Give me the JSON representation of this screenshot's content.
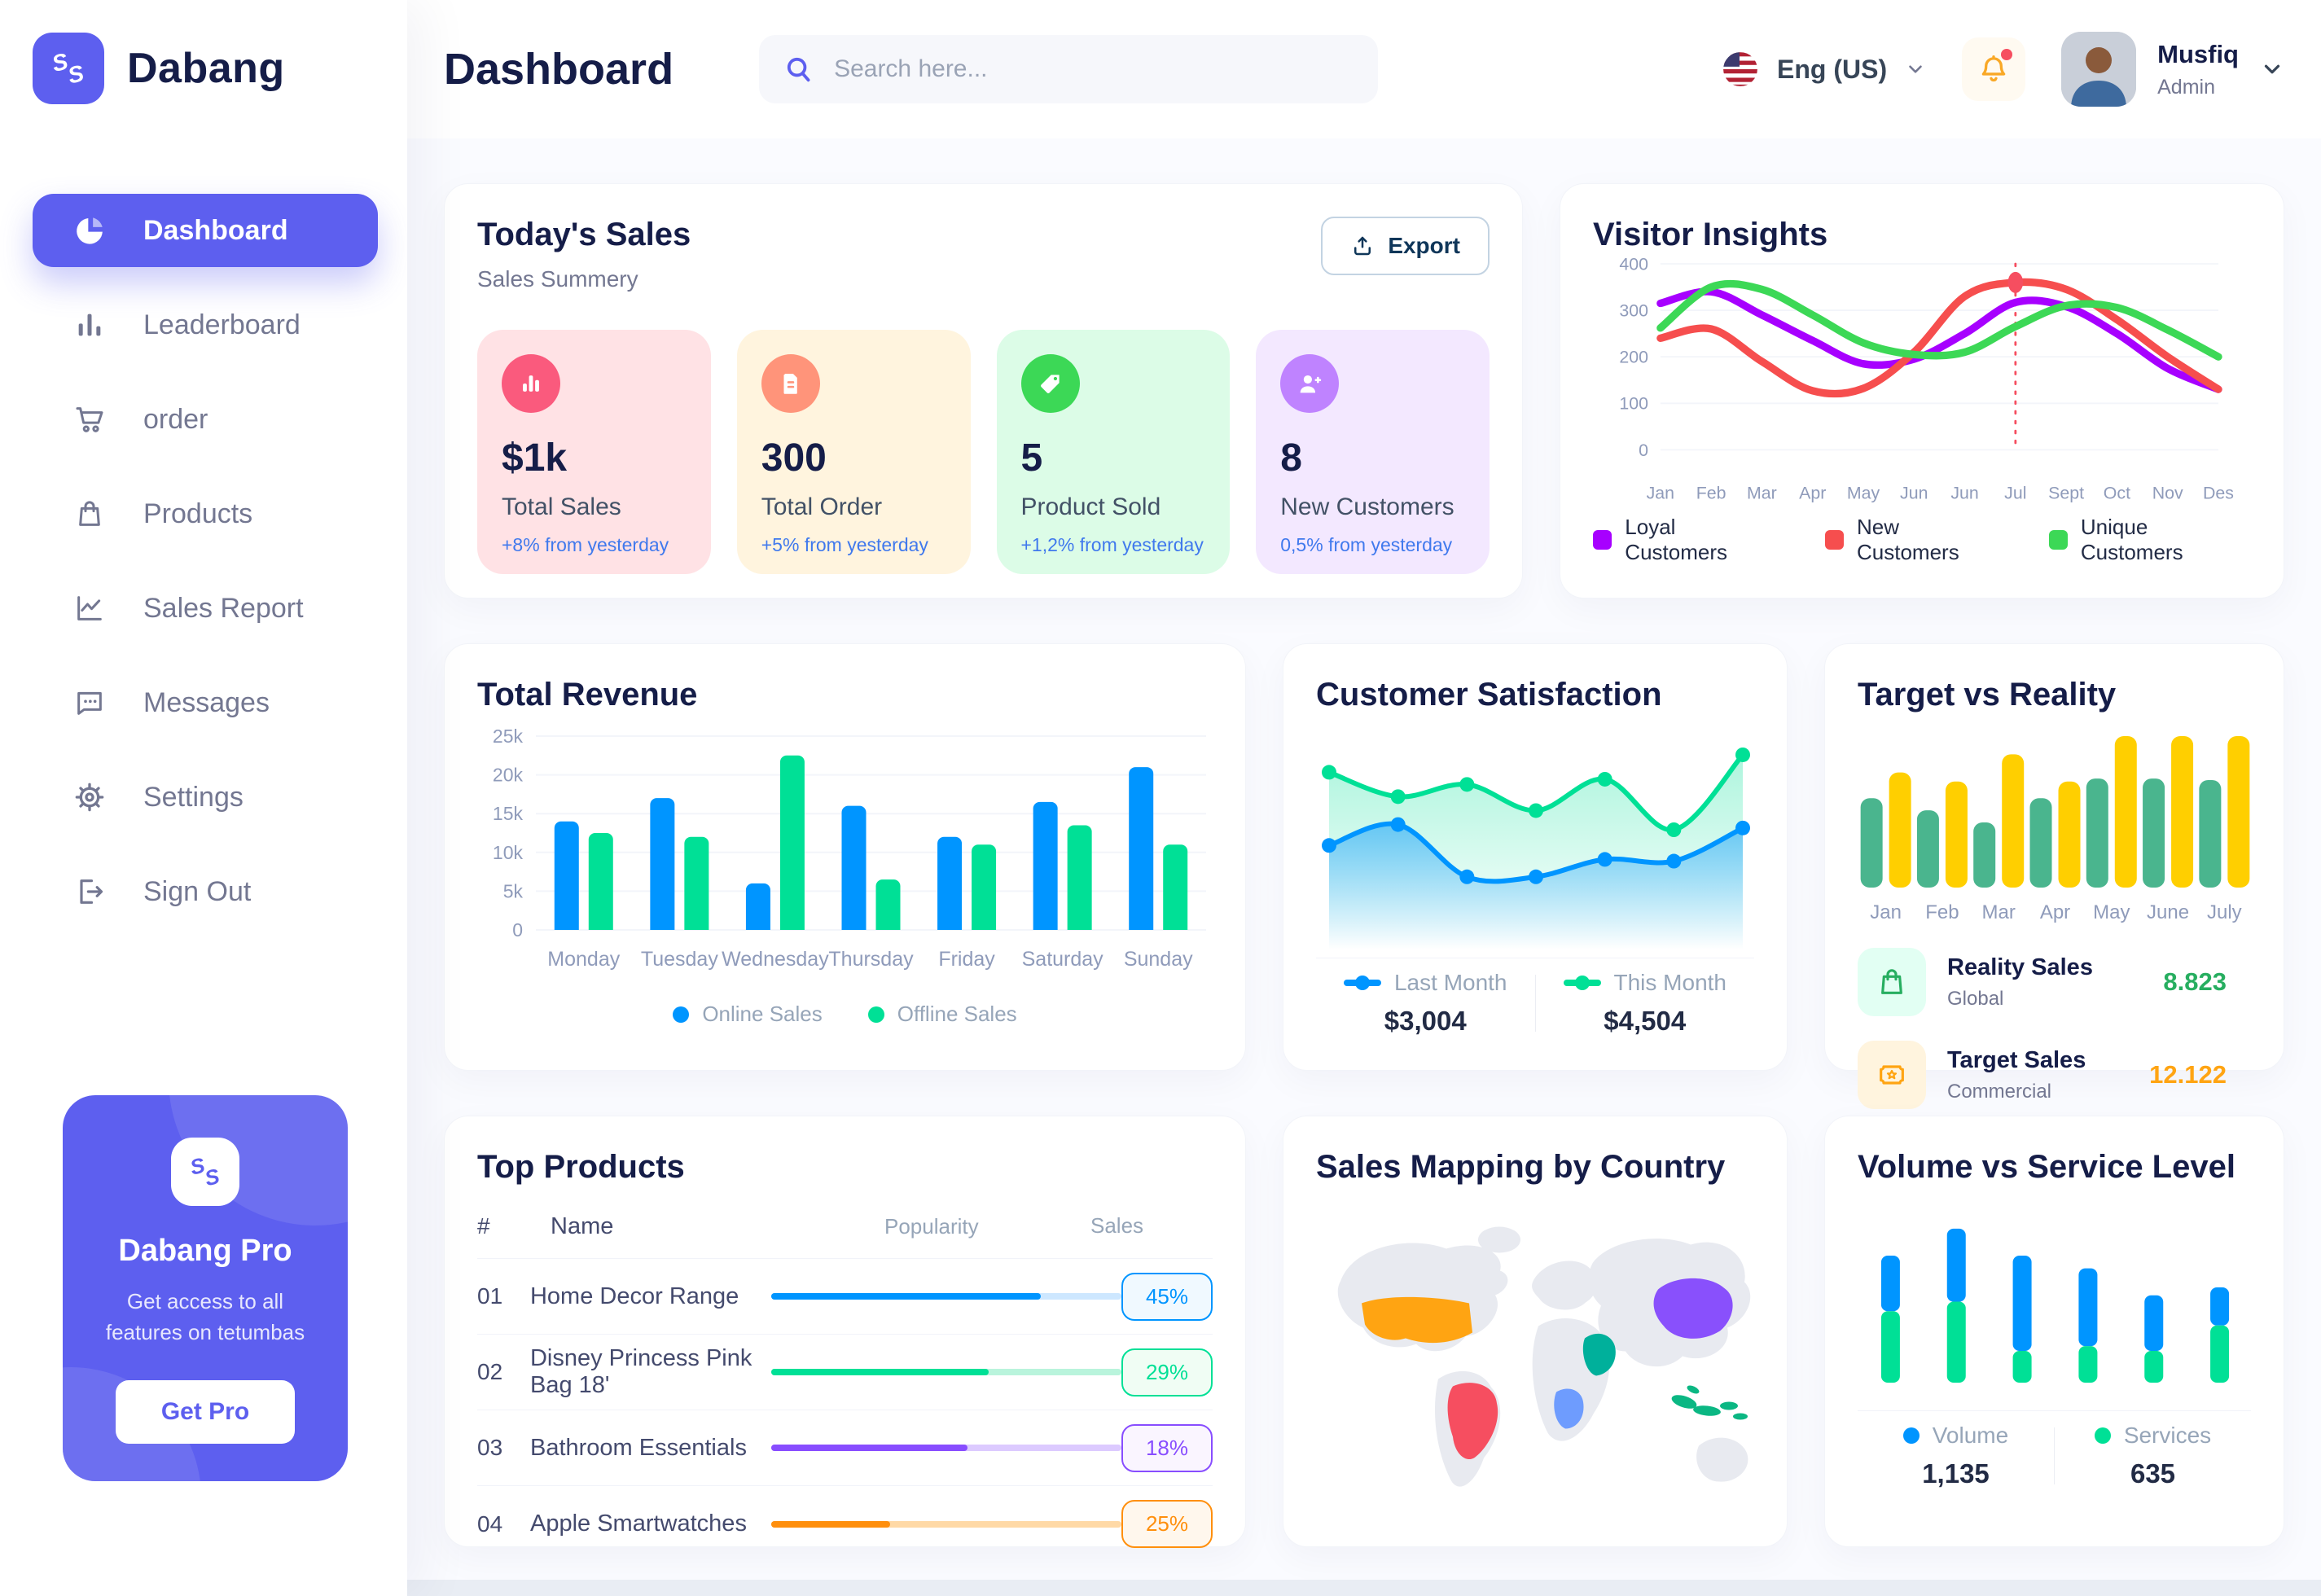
{
  "app": {
    "name": "Dabang",
    "accent_color": "#5D5FEF"
  },
  "header": {
    "title": "Dashboard",
    "search_placeholder": "Search here...",
    "language": "Eng (US)",
    "user": {
      "name": "Musfiq",
      "role": "Admin"
    }
  },
  "sidebar": {
    "items": [
      {
        "label": "Dashboard",
        "icon": "pie-chart-icon",
        "active": true
      },
      {
        "label": "Leaderboard",
        "icon": "bar-chart-icon"
      },
      {
        "label": "order",
        "icon": "cart-icon"
      },
      {
        "label": "Products",
        "icon": "bag-icon"
      },
      {
        "label": "Sales Report",
        "icon": "line-chart-icon"
      },
      {
        "label": "Messages",
        "icon": "message-icon"
      },
      {
        "label": "Settings",
        "icon": "gear-icon"
      },
      {
        "label": "Sign Out",
        "icon": "sign-out-icon"
      }
    ],
    "pro_card": {
      "title": "Dabang Pro",
      "subtitle": "Get access to all features on tetumbas",
      "button_label": "Get Pro"
    }
  },
  "todays_sales": {
    "title": "Today's Sales",
    "subtitle": "Sales Summery",
    "export_label": "Export",
    "delta_color": "#4079ED",
    "stats": [
      {
        "value": "$1k",
        "label": "Total Sales",
        "delta": "+8% from yesterday",
        "bg": "#FFE2E5",
        "icon_bg": "#FA5A7D",
        "icon": "bar-stats-icon"
      },
      {
        "value": "300",
        "label": "Total Order",
        "delta": "+5% from yesterday",
        "bg": "#FFF4DE",
        "icon_bg": "#FF947A",
        "icon": "file-icon"
      },
      {
        "value": "5",
        "label": "Product Sold",
        "delta": "+1,2% from yesterday",
        "bg": "#DCFCE7",
        "icon_bg": "#3CD856",
        "icon": "tag-icon"
      },
      {
        "value": "8",
        "label": "New Customers",
        "delta": "0,5% from yesterday",
        "bg": "#F3E8FF",
        "icon_bg": "#BF83FF",
        "icon": "user-plus-icon"
      }
    ]
  },
  "chart_data": [
    {
      "id": "visitor_insights",
      "type": "line",
      "title": "Visitor Insights",
      "x": [
        "Jan",
        "Feb",
        "Mar",
        "Apr",
        "May",
        "Jun",
        "Jun",
        "Jul",
        "Sept",
        "Oct",
        "Nov",
        "Des"
      ],
      "ylim": [
        0,
        400
      ],
      "yticks": [
        0,
        100,
        200,
        300,
        400
      ],
      "grid": true,
      "legend_position": "bottom",
      "series": [
        {
          "name": "Loyal Customers",
          "color": "#A700FF",
          "values": [
            315,
            340,
            290,
            235,
            185,
            195,
            250,
            317,
            308,
            250,
            175,
            130
          ]
        },
        {
          "name": "New Customers",
          "color": "#F64E4E",
          "values": [
            240,
            260,
            190,
            127,
            132,
            210,
            330,
            360,
            345,
            280,
            200,
            130
          ]
        },
        {
          "name": "Unique Customers",
          "color": "#3CD856",
          "values": [
            262,
            350,
            345,
            290,
            230,
            205,
            210,
            265,
            310,
            306,
            258,
            200
          ]
        }
      ],
      "marker": {
        "series": 1,
        "index": 7,
        "color": "#F64E60"
      }
    },
    {
      "id": "total_revenue",
      "type": "bar",
      "title": "Total Revenue",
      "categories": [
        "Monday",
        "Tuesday",
        "Wednesday",
        "Thursday",
        "Friday",
        "Saturday",
        "Sunday"
      ],
      "ylim": [
        0,
        25000
      ],
      "yticks": [
        0,
        5000,
        10000,
        15000,
        20000,
        25000
      ],
      "ytick_labels": [
        "0",
        "5k",
        "10k",
        "15k",
        "20k",
        "25k"
      ],
      "grid": true,
      "legend_position": "bottom",
      "series": [
        {
          "name": "Online Sales",
          "color": "#0095FF",
          "values": [
            14000,
            17000,
            6000,
            16000,
            12000,
            16500,
            21000
          ]
        },
        {
          "name": "Offline Sales",
          "color": "#00E096",
          "values": [
            12500,
            12000,
            22500,
            6500,
            11000,
            13500,
            11000
          ]
        }
      ]
    },
    {
      "id": "customer_satisfaction",
      "type": "area",
      "title": "Customer Satisfaction",
      "ylim": [
        0,
        100
      ],
      "grid": false,
      "legend_position": "bottom",
      "series": [
        {
          "name": "Last Month",
          "color": "#0095FF",
          "total": "$3,004",
          "values": [
            41,
            53,
            23,
            23,
            33,
            32,
            51
          ]
        },
        {
          "name": "This Month",
          "color": "#00E096",
          "total": "$4,504",
          "values": [
            83,
            69,
            76,
            61,
            79,
            50,
            93
          ]
        }
      ]
    },
    {
      "id": "target_vs_reality",
      "type": "bar",
      "title": "Target vs Reality",
      "categories": [
        "Jan",
        "Feb",
        "Mar",
        "Apr",
        "May",
        "June",
        "July"
      ],
      "ylim": [
        0,
        10
      ],
      "grid": false,
      "series": [
        {
          "name": "Reality Sales",
          "color": "#4AB58E",
          "values": [
            5.9,
            5.1,
            4.3,
            5.9,
            7.2,
            7.2,
            7.1
          ]
        },
        {
          "name": "Target Sales",
          "color": "#FFCF00",
          "values": [
            7.6,
            7.0,
            8.8,
            7.0,
            10,
            10,
            10
          ]
        }
      ],
      "legend": [
        {
          "label": "Reality Sales",
          "sub": "Global",
          "value": "8.823",
          "value_color": "#27AE60",
          "icon_bg": "#E2FFF3",
          "icon": "bag-icon"
        },
        {
          "label": "Target Sales",
          "sub": "Commercial",
          "value": "12.122",
          "value_color": "#FFA412",
          "icon_bg": "#FFF4DE",
          "icon": "ticket-icon"
        }
      ]
    },
    {
      "id": "volume_vs_service",
      "type": "stacked-bar",
      "title": "Volume vs Service Level",
      "ylim": [
        0,
        100
      ],
      "grid": false,
      "legend_position": "bottom",
      "series": [
        {
          "name": "Volume",
          "color": "#0095FF",
          "total": "1,135",
          "values": [
            35,
            46,
            60,
            49,
            35,
            24
          ]
        },
        {
          "name": "Services",
          "color": "#00E096",
          "total": "635",
          "values": [
            45,
            51,
            20,
            23,
            20,
            36
          ]
        }
      ]
    }
  ],
  "top_products": {
    "title": "Top Products",
    "headers": {
      "num": "#",
      "name": "Name",
      "popularity": "Popularity",
      "sales": "Sales"
    },
    "rows": [
      {
        "num": "01",
        "name": "Home Decor Range",
        "popularity": 77,
        "color": "#0095FF",
        "track": "#CDE7FF",
        "sales": "45%",
        "badge_bg": "#F0F9FF"
      },
      {
        "num": "02",
        "name": "Disney Princess Pink Bag 18'",
        "popularity": 62,
        "color": "#00E096",
        "track": "#B9F4DC",
        "sales": "29%",
        "badge_bg": "#F0FDF4"
      },
      {
        "num": "03",
        "name": "Bathroom Essentials",
        "popularity": 56,
        "color": "#884DFF",
        "track": "#DCCAFF",
        "sales": "18%",
        "badge_bg": "#FAF5FF"
      },
      {
        "num": "04",
        "name": "Apple Smartwatches",
        "popularity": 34,
        "color": "#FF8F0D",
        "track": "#FFD9A6",
        "sales": "25%",
        "badge_bg": "#FFF7ED"
      }
    ]
  },
  "sales_map": {
    "title": "Sales Mapping by Country",
    "base_color": "#E8EAF0",
    "countries": [
      {
        "id": "usa",
        "name": "United States",
        "color": "#FFA412"
      },
      {
        "id": "brazil",
        "name": "Brazil",
        "color": "#F64E60"
      },
      {
        "id": "saudi",
        "name": "Saudi Arabia",
        "color": "#00B09B"
      },
      {
        "id": "congo",
        "name": "DR Congo",
        "color": "#6E9CFE"
      },
      {
        "id": "china",
        "name": "China",
        "color": "#8950FC"
      },
      {
        "id": "indonesia",
        "name": "Indonesia",
        "color": "#0BB783"
      }
    ]
  }
}
